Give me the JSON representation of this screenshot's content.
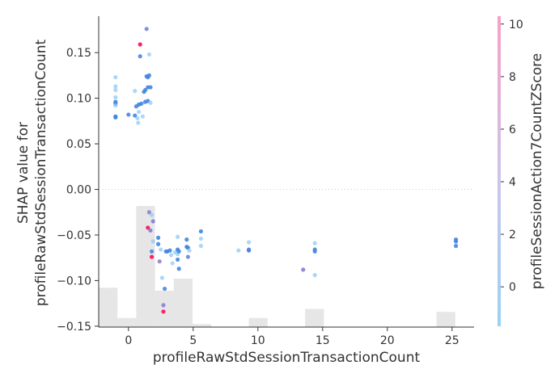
{
  "chart_data": {
    "type": "scatter",
    "title": "",
    "xlabel": "profileRawStdSessionTransactionCount",
    "ylabel_lines": [
      "SHAP value for",
      "profileRawStdSessionTransactionCount"
    ],
    "xlim": [
      -2.3,
      26.7
    ],
    "ylim": [
      -0.151,
      0.19
    ],
    "x_ticks": [
      0,
      5,
      10,
      15,
      20,
      25
    ],
    "x_tick_labels": [
      "0",
      "5",
      "10",
      "15",
      "20",
      "25"
    ],
    "y_ticks": [
      0.15,
      0.1,
      0.05,
      0.0,
      -0.05,
      -0.1,
      -0.15
    ],
    "y_tick_labels": [
      "0.15",
      "0.10",
      "0.05",
      "0.00",
      "−0.05",
      "−0.10",
      "−0.15"
    ],
    "zero_line": true,
    "grid": false,
    "colorbar": {
      "label": "profileSessionAction7CountZScore",
      "range": [
        -1.5,
        10.3
      ],
      "ticks": [
        0,
        2,
        4,
        6,
        8,
        10
      ],
      "tick_labels": [
        "0",
        "2",
        "4",
        "6",
        "8",
        "10"
      ],
      "colors": [
        "#1e88e5",
        "#a97fcc",
        "#ff0052"
      ]
    },
    "histogram": {
      "bin_edges": [
        -2.3,
        -0.85,
        0.6,
        2.05,
        3.5,
        4.95,
        6.4,
        7.85,
        9.3,
        10.75,
        12.2,
        13.65,
        15.1,
        16.55,
        18.0,
        19.45,
        20.9,
        22.35,
        23.8,
        25.25,
        26.7
      ],
      "counts": [
        13,
        3,
        40,
        12,
        16,
        1,
        0,
        0,
        3,
        0,
        0,
        6,
        0,
        0,
        0,
        0,
        0,
        0,
        5,
        0
      ],
      "color": "#e6e6e6"
    },
    "points": [
      {
        "x": -1,
        "y": 0.123,
        "c": -1.0
      },
      {
        "x": -1,
        "y": 0.113,
        "c": -0.5
      },
      {
        "x": -1,
        "y": 0.109,
        "c": -0.8
      },
      {
        "x": -1,
        "y": 0.101,
        "c": -1.1
      },
      {
        "x": -1,
        "y": 0.096,
        "c": 0.1
      },
      {
        "x": -1,
        "y": 0.094,
        "c": -0.2
      },
      {
        "x": -1,
        "y": 0.092,
        "c": -0.6
      },
      {
        "x": -1,
        "y": 0.08,
        "c": 0.2
      },
      {
        "x": -1,
        "y": 0.079,
        "c": -0.3
      },
      {
        "x": 0,
        "y": 0.082,
        "c": 0.3
      },
      {
        "x": 0.5,
        "y": 0.108,
        "c": -1.1
      },
      {
        "x": 0.5,
        "y": 0.081,
        "c": 0.4
      },
      {
        "x": 0.6,
        "y": 0.091,
        "c": 0.6
      },
      {
        "x": 0.7,
        "y": 0.078,
        "c": -1.1
      },
      {
        "x": 0.75,
        "y": 0.073,
        "c": -1.2
      },
      {
        "x": 0.8,
        "y": 0.085,
        "c": -0.9
      },
      {
        "x": 0.8,
        "y": 0.093,
        "c": -0.3
      },
      {
        "x": 0.9,
        "y": 0.159,
        "c": 9.8
      },
      {
        "x": 0.9,
        "y": 0.146,
        "c": 0.3
      },
      {
        "x": 1.0,
        "y": 0.094,
        "c": 0.0
      },
      {
        "x": 1.1,
        "y": 0.08,
        "c": -1.1
      },
      {
        "x": 1.2,
        "y": 0.107,
        "c": 0.0
      },
      {
        "x": 1.3,
        "y": 0.109,
        "c": 0.1
      },
      {
        "x": 1.3,
        "y": 0.096,
        "c": 0.2
      },
      {
        "x": 1.4,
        "y": 0.176,
        "c": 2.5
      },
      {
        "x": 1.4,
        "y": 0.124,
        "c": 0.2
      },
      {
        "x": 1.5,
        "y": 0.123,
        "c": 0.0
      },
      {
        "x": 1.5,
        "y": 0.112,
        "c": 0.1
      },
      {
        "x": 1.5,
        "y": 0.097,
        "c": 0.3
      },
      {
        "x": 1.6,
        "y": 0.148,
        "c": -0.6
      },
      {
        "x": 1.6,
        "y": 0.125,
        "c": 0.2
      },
      {
        "x": 1.7,
        "y": 0.112,
        "c": 0.3
      },
      {
        "x": 1.7,
        "y": 0.095,
        "c": -0.9
      },
      {
        "x": 1.5,
        "y": -0.042,
        "c": 9.5
      },
      {
        "x": 1.6,
        "y": -0.025,
        "c": 3.2
      },
      {
        "x": 1.7,
        "y": -0.045,
        "c": 2.5
      },
      {
        "x": 1.8,
        "y": -0.028,
        "c": -0.5
      },
      {
        "x": 1.8,
        "y": -0.074,
        "c": 9.8
      },
      {
        "x": 1.8,
        "y": -0.068,
        "c": 0.5
      },
      {
        "x": 1.9,
        "y": -0.035,
        "c": 2.5
      },
      {
        "x": 1.9,
        "y": -0.057,
        "c": -0.8
      },
      {
        "x": 2.3,
        "y": -0.053,
        "c": -0.2
      },
      {
        "x": 2.3,
        "y": -0.06,
        "c": 0.0
      },
      {
        "x": 2.4,
        "y": -0.079,
        "c": 3.5
      },
      {
        "x": 2.5,
        "y": -0.066,
        "c": -0.6
      },
      {
        "x": 2.6,
        "y": -0.097,
        "c": -1.2
      },
      {
        "x": 2.7,
        "y": -0.127,
        "c": 3.0
      },
      {
        "x": 2.7,
        "y": -0.134,
        "c": 9.5
      },
      {
        "x": 2.8,
        "y": -0.109,
        "c": 0.2
      },
      {
        "x": 2.9,
        "y": -0.068,
        "c": 0.1
      },
      {
        "x": 3.0,
        "y": -0.068,
        "c": 0.2
      },
      {
        "x": 3.2,
        "y": -0.067,
        "c": 0.0
      },
      {
        "x": 3.3,
        "y": -0.072,
        "c": -1.1
      },
      {
        "x": 3.4,
        "y": -0.081,
        "c": -1.0
      },
      {
        "x": 3.6,
        "y": -0.069,
        "c": -0.9
      },
      {
        "x": 3.8,
        "y": -0.052,
        "c": -0.7
      },
      {
        "x": 3.8,
        "y": -0.066,
        "c": -0.2
      },
      {
        "x": 3.8,
        "y": -0.071,
        "c": -0.8
      },
      {
        "x": 3.8,
        "y": -0.077,
        "c": 0.0
      },
      {
        "x": 3.9,
        "y": -0.087,
        "c": 0.1
      },
      {
        "x": 3.9,
        "y": -0.068,
        "c": 0.2
      },
      {
        "x": 4.5,
        "y": -0.055,
        "c": -0.1
      },
      {
        "x": 4.5,
        "y": -0.063,
        "c": 0.3
      },
      {
        "x": 4.6,
        "y": -0.074,
        "c": 2.0
      },
      {
        "x": 4.6,
        "y": -0.064,
        "c": -0.2
      },
      {
        "x": 4.7,
        "y": -0.067,
        "c": -0.7
      },
      {
        "x": 5.6,
        "y": -0.046,
        "c": -0.3
      },
      {
        "x": 5.6,
        "y": -0.054,
        "c": -1.0
      },
      {
        "x": 5.6,
        "y": -0.062,
        "c": -1.0
      },
      {
        "x": 8.5,
        "y": -0.067,
        "c": -1.1
      },
      {
        "x": 9.3,
        "y": -0.058,
        "c": -1.0
      },
      {
        "x": 9.3,
        "y": -0.066,
        "c": 0.1
      },
      {
        "x": 9.3,
        "y": -0.067,
        "c": 0.2
      },
      {
        "x": 13.5,
        "y": -0.088,
        "c": 2.5
      },
      {
        "x": 14.4,
        "y": -0.059,
        "c": -1.0
      },
      {
        "x": 14.4,
        "y": -0.066,
        "c": 0.1
      },
      {
        "x": 14.4,
        "y": -0.068,
        "c": 0.3
      },
      {
        "x": 14.4,
        "y": -0.094,
        "c": -1.1
      },
      {
        "x": 25.3,
        "y": -0.055,
        "c": 0.2
      },
      {
        "x": 25.3,
        "y": -0.057,
        "c": 0.1
      },
      {
        "x": 25.3,
        "y": -0.062,
        "c": 0.3
      }
    ]
  }
}
